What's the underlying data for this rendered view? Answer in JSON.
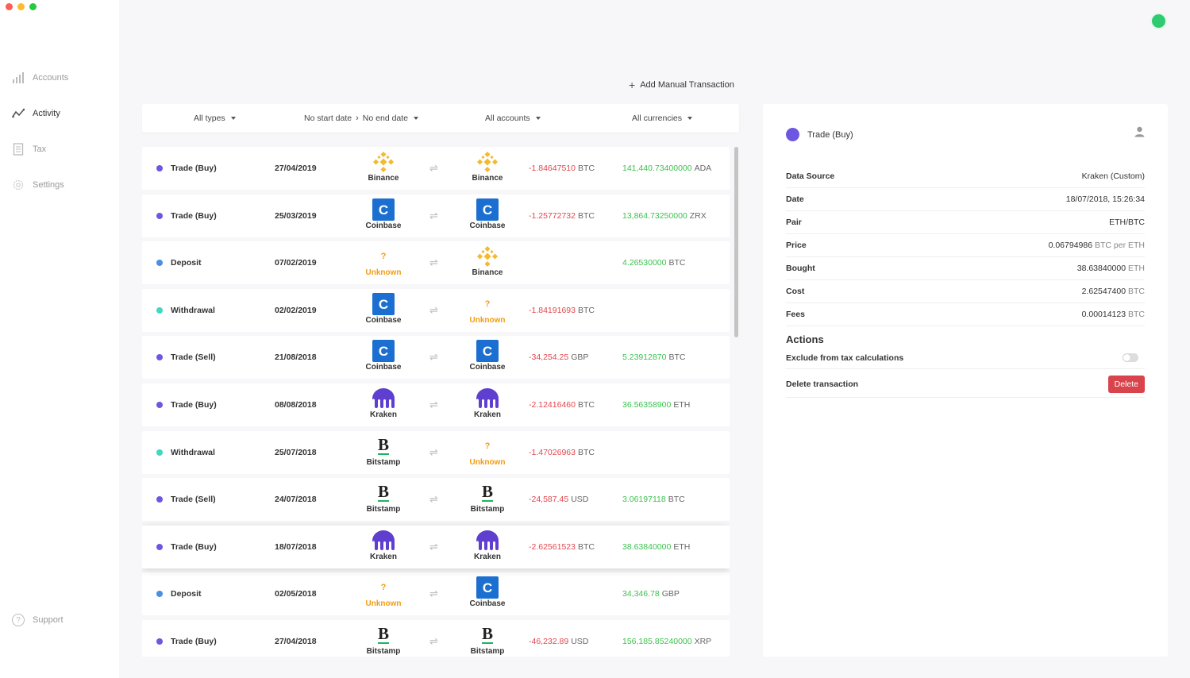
{
  "sidebar": {
    "items": [
      {
        "label": "Accounts",
        "icon": "bar-chart-icon",
        "active": false
      },
      {
        "label": "Activity",
        "icon": "activity-line-icon",
        "active": true
      },
      {
        "label": "Tax",
        "icon": "document-icon",
        "active": false
      },
      {
        "label": "Settings",
        "icon": "gear-icon",
        "active": false
      }
    ],
    "support_label": "Support"
  },
  "toolbar": {
    "add_manual_label": "Add Manual Transaction"
  },
  "filters": {
    "types": "All types",
    "start_date": "No start date",
    "end_date": "No end date",
    "accounts": "All accounts",
    "currencies": "All currencies"
  },
  "colors": {
    "trade": "#6e57e0",
    "deposit": "#4a90e2",
    "withdrawal": "#3dd9c5",
    "negative": "#e0484e",
    "positive": "#3cc24f",
    "status": "#2ecc71"
  },
  "transactions": [
    {
      "type": "Trade (Buy)",
      "kind": "trade",
      "date": "27/04/2019",
      "from": "Binance",
      "to": "Binance",
      "out_amount": "-1.84647510",
      "out_cur": "BTC",
      "in_amount": "141,440.73400000",
      "in_cur": "ADA"
    },
    {
      "type": "Trade (Buy)",
      "kind": "trade",
      "date": "25/03/2019",
      "from": "Coinbase",
      "to": "Coinbase",
      "out_amount": "-1.25772732",
      "out_cur": "BTC",
      "in_amount": "13,864.73250000",
      "in_cur": "ZRX"
    },
    {
      "type": "Deposit",
      "kind": "deposit",
      "date": "07/02/2019",
      "from": "Unknown",
      "to": "Binance",
      "out_amount": "",
      "out_cur": "",
      "in_amount": "4.26530000",
      "in_cur": "BTC"
    },
    {
      "type": "Withdrawal",
      "kind": "withdrawal",
      "date": "02/02/2019",
      "from": "Coinbase",
      "to": "Unknown",
      "out_amount": "-1.84191693",
      "out_cur": "BTC",
      "in_amount": "",
      "in_cur": ""
    },
    {
      "type": "Trade (Sell)",
      "kind": "trade",
      "date": "21/08/2018",
      "from": "Coinbase",
      "to": "Coinbase",
      "out_amount": "-34,254.25",
      "out_cur": "GBP",
      "in_amount": "5.23912870",
      "in_cur": "BTC"
    },
    {
      "type": "Trade (Buy)",
      "kind": "trade",
      "date": "08/08/2018",
      "from": "Kraken",
      "to": "Kraken",
      "out_amount": "-2.12416460",
      "out_cur": "BTC",
      "in_amount": "36.56358900",
      "in_cur": "ETH"
    },
    {
      "type": "Withdrawal",
      "kind": "withdrawal",
      "date": "25/07/2018",
      "from": "Bitstamp",
      "to": "Unknown",
      "out_amount": "-1.47026963",
      "out_cur": "BTC",
      "in_amount": "",
      "in_cur": ""
    },
    {
      "type": "Trade (Sell)",
      "kind": "trade",
      "date": "24/07/2018",
      "from": "Bitstamp",
      "to": "Bitstamp",
      "out_amount": "-24,587.45",
      "out_cur": "USD",
      "in_amount": "3.06197118",
      "in_cur": "BTC"
    },
    {
      "type": "Trade (Buy)",
      "kind": "trade",
      "date": "18/07/2018",
      "from": "Kraken",
      "to": "Kraken",
      "out_amount": "-2.62561523",
      "out_cur": "BTC",
      "in_amount": "38.63840000",
      "in_cur": "ETH",
      "selected": true
    },
    {
      "type": "Deposit",
      "kind": "deposit",
      "date": "02/05/2018",
      "from": "Unknown",
      "to": "Coinbase",
      "out_amount": "",
      "out_cur": "",
      "in_amount": "34,346.78",
      "in_cur": "GBP"
    },
    {
      "type": "Trade (Buy)",
      "kind": "trade",
      "date": "27/04/2018",
      "from": "Bitstamp",
      "to": "Bitstamp",
      "out_amount": "-46,232.89",
      "out_cur": "USD",
      "in_amount": "156,185.85240000",
      "in_cur": "XRP"
    }
  ],
  "detail": {
    "title": "Trade (Buy)",
    "rows": [
      {
        "key": "Data Source",
        "value": "Kraken (Custom)",
        "unit": ""
      },
      {
        "key": "Date",
        "value": "18/07/2018, 15:26:34",
        "unit": ""
      },
      {
        "key": "Pair",
        "value": "ETH/BTC",
        "unit": ""
      },
      {
        "key": "Price",
        "value": "0.06794986",
        "unit": "BTC per ETH"
      },
      {
        "key": "Bought",
        "value": "38.63840000",
        "unit": "ETH"
      },
      {
        "key": "Cost",
        "value": "2.62547400",
        "unit": "BTC"
      },
      {
        "key": "Fees",
        "value": "0.00014123",
        "unit": "BTC"
      }
    ],
    "actions_title": "Actions",
    "exclude_label": "Exclude from tax calculations",
    "exclude_enabled": false,
    "delete_label": "Delete transaction",
    "delete_button": "Delete"
  }
}
